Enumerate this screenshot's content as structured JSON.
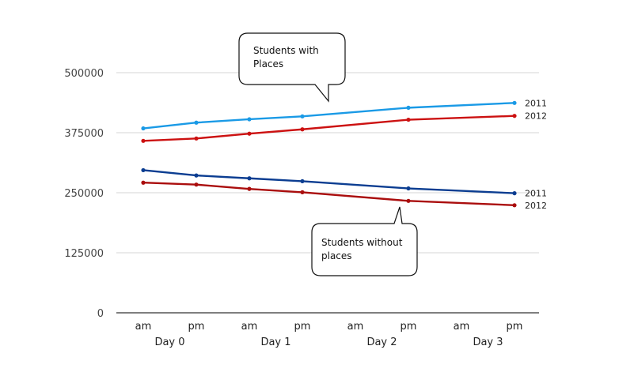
{
  "chart_data": {
    "type": "line",
    "ylim": [
      0,
      500000
    ],
    "yticks": [
      "0",
      "125000",
      "250000",
      "375000",
      "500000"
    ],
    "grid": "horizontal",
    "x_positions": [
      0,
      1,
      2,
      3,
      5,
      7
    ],
    "x_tick_labels": [
      "am",
      "pm",
      "am",
      "pm",
      "am",
      "pm",
      "am",
      "pm"
    ],
    "x_groups": [
      "Day 0",
      "Day 1",
      "Day 2",
      "Day 3"
    ],
    "series": [
      {
        "name": "2011",
        "group": "Students with Places",
        "color": "#1a9ae6",
        "values": [
          384000,
          396000,
          403000,
          409000,
          427000,
          437000
        ]
      },
      {
        "name": "2012",
        "group": "Students with Places",
        "color": "#cc1111",
        "values": [
          358000,
          363000,
          373000,
          382000,
          402000,
          410000
        ]
      },
      {
        "name": "2011",
        "group": "Students without places",
        "color": "#0b3d91",
        "values": [
          297000,
          286000,
          280000,
          274000,
          259000,
          249000
        ]
      },
      {
        "name": "2012",
        "group": "Students without places",
        "color": "#aa0d0d",
        "values": [
          271000,
          267000,
          258000,
          251000,
          233000,
          224000
        ]
      }
    ],
    "annotations": [
      {
        "lines": [
          "Students with",
          "Places"
        ]
      },
      {
        "lines": [
          "Students without",
          "places"
        ]
      }
    ]
  }
}
